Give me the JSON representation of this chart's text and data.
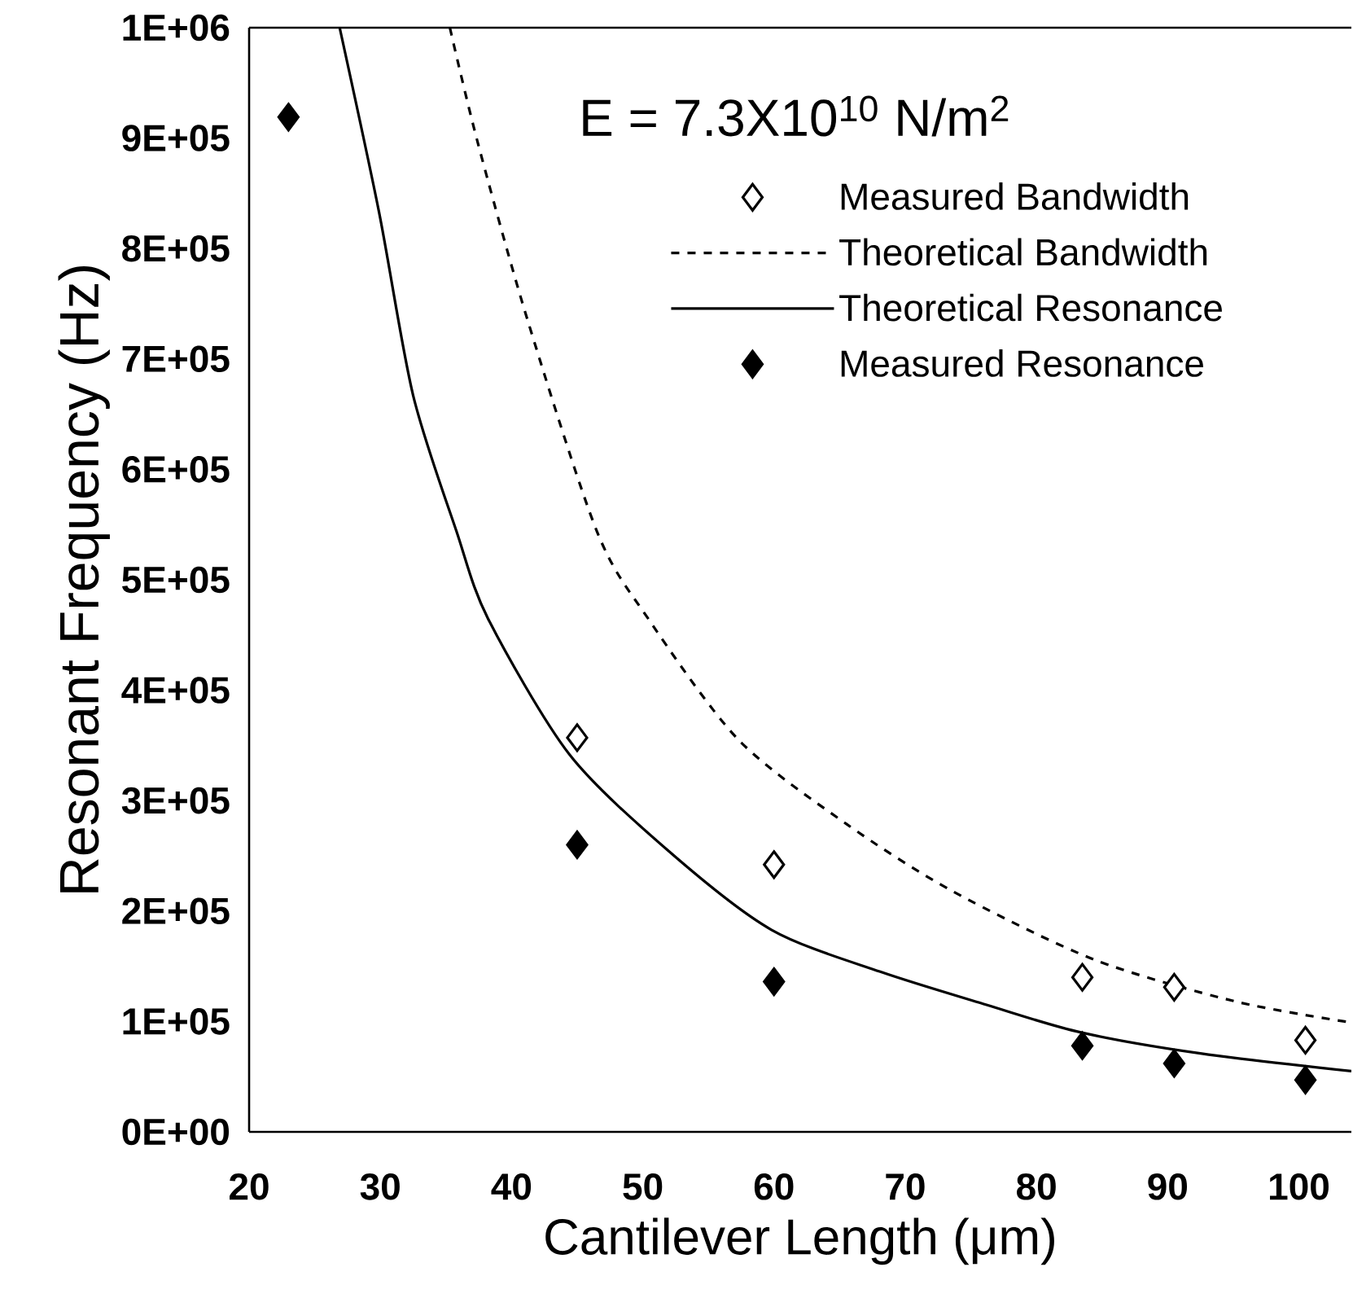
{
  "chart_data": {
    "type": "scatter",
    "xlabel": "Cantilever Length (μm)",
    "ylabel": "Resonant Frequency (Hz)",
    "annotations": [
      "E = 7.3X10$^{10}$ N/m$^{2}$"
    ],
    "xlim": [
      20,
      104
    ],
    "xticks": [
      20,
      30,
      40,
      50,
      60,
      70,
      80,
      90,
      100
    ],
    "ylim": [
      0,
      1000000
    ],
    "yticks": [
      {
        "value": 0,
        "label": "0E+00"
      },
      {
        "value": 100000,
        "label": "1E+05"
      },
      {
        "value": 200000,
        "label": "2E+05"
      },
      {
        "value": 300000,
        "label": "3E+05"
      },
      {
        "value": 400000,
        "label": "4E+05"
      },
      {
        "value": 500000,
        "label": "5E+05"
      },
      {
        "value": 600000,
        "label": "6E+05"
      },
      {
        "value": 700000,
        "label": "7E+05"
      },
      {
        "value": 800000,
        "label": "8E+05"
      },
      {
        "value": 900000,
        "label": "9E+05"
      },
      {
        "value": 1000000,
        "label": "1E+06"
      }
    ],
    "grid": false,
    "legend": "top right",
    "series": [
      {
        "name": "Measured Bandwidth",
        "type": "scatter",
        "marker": "diamond_open",
        "color": "#000000",
        "x": [
          45,
          60,
          83.5,
          90.5,
          100.5
        ],
        "values": [
          357000,
          242000,
          140000,
          131000,
          83000
        ]
      },
      {
        "name": "Theoretical Bandwidth",
        "type": "line",
        "marker": "none",
        "line_style": "dashed",
        "color": "#000000",
        "x": [
          35.3,
          37.4,
          41.2,
          46.5,
          50.4,
          57.3,
          65.5,
          73.6,
          84.4,
          95.2,
          104
        ],
        "values": [
          1000000,
          897000,
          736000,
          544000,
          465000,
          355000,
          279000,
          218000,
          156000,
          118000,
          99000
        ]
      },
      {
        "name": "Theoretical Resonance",
        "type": "line",
        "marker": "none",
        "line_style": "solid",
        "color": "#000000",
        "x": [
          26.9,
          29.9,
          32.5,
          35.8,
          38.2,
          44.4,
          52,
          59.8,
          68.1,
          76.2,
          83.4,
          92.5,
          104
        ],
        "values": [
          1000000,
          833000,
          667000,
          544000,
          465000,
          342000,
          254000,
          183000,
          145000,
          115000,
          90000,
          71000,
          55000
        ]
      },
      {
        "name": "Measured Resonance",
        "type": "scatter",
        "marker": "diamond",
        "color": "#000000",
        "x": [
          23,
          45,
          60,
          83.5,
          90.5,
          100.5
        ],
        "values": [
          919000,
          260000,
          136000,
          78000,
          62000,
          47000
        ]
      }
    ]
  }
}
